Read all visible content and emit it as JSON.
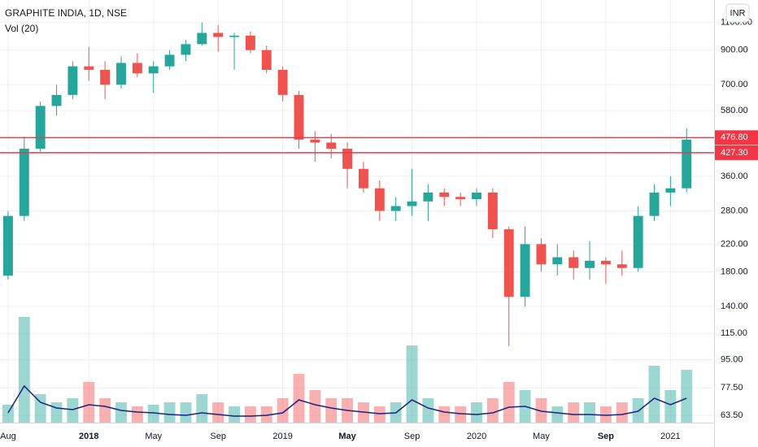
{
  "chart_data": {
    "type": "candlestick",
    "title": "GRAPHITE INDIA, 1D, NSE",
    "study": "Vol (20)",
    "currency": "INR",
    "log_scale": true,
    "grid": true,
    "up_color": "#26a69a",
    "down_color": "#ef5350",
    "ma_color": "#1a237e",
    "line_color": "#f23645",
    "xlim": [
      -0.5,
      43.7
    ],
    "xticks": [
      {
        "value": 0,
        "label": "Aug"
      },
      {
        "value": 5,
        "label": "2018"
      },
      {
        "value": 9,
        "label": "May"
      },
      {
        "value": 13,
        "label": "Sep"
      },
      {
        "value": 17,
        "label": "2019"
      },
      {
        "value": 21,
        "label": "May"
      },
      {
        "value": 25,
        "label": "Sep"
      },
      {
        "value": 29,
        "label": "2020"
      },
      {
        "value": 33,
        "label": "May"
      },
      {
        "value": 37,
        "label": "Sep"
      },
      {
        "value": 41,
        "label": "2021"
      }
    ],
    "ylim": [
      60.2,
      1295
    ],
    "yticks": [
      {
        "value": 1100,
        "label": "1100.00"
      },
      {
        "value": 900,
        "label": "900.00"
      },
      {
        "value": 700,
        "label": "700.00"
      },
      {
        "value": 580,
        "label": "580.00"
      },
      {
        "value": 360,
        "label": "360.00"
      },
      {
        "value": 280,
        "label": "280.00"
      },
      {
        "value": 220,
        "label": "220.00"
      },
      {
        "value": 180,
        "label": "180.00"
      },
      {
        "value": 140,
        "label": "140.00"
      },
      {
        "value": 115,
        "label": "115.00"
      },
      {
        "value": 95,
        "label": "95.00"
      },
      {
        "value": 77.5,
        "label": "77.50"
      },
      {
        "value": 63.5,
        "label": "63.50"
      }
    ],
    "hlines": [
      {
        "value": 476.8,
        "label": "476.80"
      },
      {
        "value": 427.3,
        "label": "427.30"
      }
    ],
    "ohlc": [
      [
        175,
        280,
        170,
        270
      ],
      [
        270,
        480,
        260,
        440
      ],
      [
        440,
        620,
        430,
        600
      ],
      [
        600,
        700,
        560,
        650
      ],
      [
        650,
        830,
        630,
        800
      ],
      [
        800,
        920,
        720,
        780
      ],
      [
        780,
        830,
        630,
        700
      ],
      [
        700,
        860,
        680,
        820
      ],
      [
        820,
        880,
        740,
        760
      ],
      [
        760,
        830,
        660,
        800
      ],
      [
        800,
        900,
        780,
        870
      ],
      [
        870,
        970,
        830,
        940
      ],
      [
        940,
        1100,
        930,
        1020
      ],
      [
        1020,
        1080,
        890,
        990
      ],
      [
        990,
        1020,
        780,
        1000
      ],
      [
        1000,
        1030,
        880,
        900
      ],
      [
        900,
        930,
        760,
        780
      ],
      [
        780,
        800,
        620,
        650
      ],
      [
        650,
        670,
        440,
        470
      ],
      [
        470,
        500,
        400,
        460
      ],
      [
        460,
        490,
        410,
        440
      ],
      [
        440,
        460,
        330,
        380
      ],
      [
        380,
        400,
        320,
        330
      ],
      [
        330,
        350,
        260,
        280
      ],
      [
        280,
        310,
        260,
        290
      ],
      [
        290,
        380,
        270,
        300
      ],
      [
        300,
        340,
        260,
        320
      ],
      [
        320,
        330,
        290,
        310
      ],
      [
        310,
        320,
        290,
        305
      ],
      [
        305,
        330,
        290,
        320
      ],
      [
        320,
        330,
        230,
        245
      ],
      [
        245,
        250,
        105,
        150
      ],
      [
        150,
        250,
        140,
        220
      ],
      [
        220,
        230,
        180,
        190
      ],
      [
        190,
        220,
        175,
        200
      ],
      [
        200,
        210,
        170,
        185
      ],
      [
        185,
        225,
        170,
        195
      ],
      [
        195,
        200,
        165,
        190
      ],
      [
        190,
        210,
        175,
        185
      ],
      [
        185,
        290,
        180,
        270
      ],
      [
        270,
        340,
        260,
        320
      ],
      [
        320,
        360,
        290,
        330
      ],
      [
        330,
        510,
        320,
        470
      ]
    ],
    "volume": [
      2.2,
      13,
      3.5,
      2.5,
      3,
      5,
      3,
      2.5,
      2,
      2.2,
      2.5,
      2.5,
      3.5,
      2.5,
      2,
      2,
      2,
      3,
      6,
      4,
      3,
      3,
      2.5,
      2,
      2.5,
      9.5,
      3,
      2,
      2,
      2.5,
      3,
      5,
      4,
      3,
      2,
      2.5,
      2.5,
      2,
      2.5,
      3,
      7,
      4,
      6.5
    ],
    "volume_ma": [
      1.2,
      4.5,
      2.5,
      1.8,
      1.6,
      2.2,
      2,
      1.5,
      1.3,
      1.2,
      1,
      0.9,
      1.2,
      1,
      0.8,
      0.8,
      0.9,
      1.2,
      2.8,
      2.2,
      1.8,
      1.5,
      1.3,
      1.1,
      1.2,
      2.8,
      1.8,
      1.3,
      1.1,
      1,
      1.2,
      1.9,
      2,
      1.4,
      1.2,
      1,
      1,
      0.9,
      1,
      1.4,
      3,
      2.2,
      3
    ]
  }
}
